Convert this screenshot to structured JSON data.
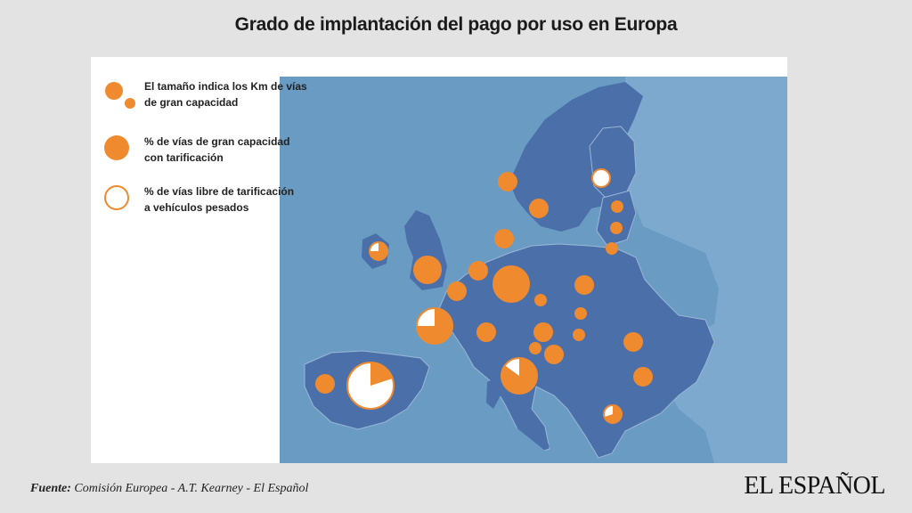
{
  "title": "Grado de implantación del pago por uso en Europa",
  "colors": {
    "sea": "#6a9cc3",
    "land_eu": "#4a6fa9",
    "land_other": "#7ea9ce",
    "border": "#9bb6d6",
    "bubble": "#ef8a2e",
    "bubble_free": "#ffffff"
  },
  "legend": [
    {
      "icon": "size-bubbles-icon",
      "line1": "El tamaño indica los Km de vías",
      "line2": "de gran capacidad"
    },
    {
      "icon": "tolled-bubble-icon",
      "line1": "% de vías de gran capacidad",
      "line2": "con tarificación"
    },
    {
      "icon": "free-bubble-icon",
      "line1": "% de vías libre de tarificación",
      "line2": "a vehículos pesados"
    }
  ],
  "bubbles": [
    {
      "id": "norway",
      "size": "medium",
      "tolled_pct": 100
    },
    {
      "id": "sweden",
      "size": "medium",
      "tolled_pct": 100
    },
    {
      "id": "finland",
      "size": "medium",
      "tolled_pct": 0
    },
    {
      "id": "estonia",
      "size": "small",
      "tolled_pct": 100
    },
    {
      "id": "latvia",
      "size": "small",
      "tolled_pct": 100
    },
    {
      "id": "lithuania",
      "size": "small",
      "tolled_pct": 100
    },
    {
      "id": "denmark",
      "size": "medium",
      "tolled_pct": 100
    },
    {
      "id": "ireland",
      "size": "medium",
      "tolled_pct": 75
    },
    {
      "id": "united-kingdom",
      "size": "large",
      "tolled_pct": 100
    },
    {
      "id": "netherlands",
      "size": "medium",
      "tolled_pct": 100
    },
    {
      "id": "belgium",
      "size": "medium",
      "tolled_pct": 100
    },
    {
      "id": "germany",
      "size": "xlarge",
      "tolled_pct": 100
    },
    {
      "id": "poland",
      "size": "medium",
      "tolled_pct": 100
    },
    {
      "id": "czech-republic",
      "size": "small",
      "tolled_pct": 100
    },
    {
      "id": "slovakia",
      "size": "small",
      "tolled_pct": 100
    },
    {
      "id": "austria",
      "size": "medium",
      "tolled_pct": 100
    },
    {
      "id": "hungary",
      "size": "small",
      "tolled_pct": 100
    },
    {
      "id": "france",
      "size": "xlarge",
      "tolled_pct": 75
    },
    {
      "id": "switzerland",
      "size": "medium",
      "tolled_pct": 100
    },
    {
      "id": "slovenia",
      "size": "small",
      "tolled_pct": 100
    },
    {
      "id": "croatia",
      "size": "medium",
      "tolled_pct": 100
    },
    {
      "id": "romania",
      "size": "medium",
      "tolled_pct": 100
    },
    {
      "id": "bulgaria",
      "size": "medium",
      "tolled_pct": 100
    },
    {
      "id": "italy",
      "size": "xlarge",
      "tolled_pct": 85
    },
    {
      "id": "portugal",
      "size": "medium",
      "tolled_pct": 100
    },
    {
      "id": "spain",
      "size": "xxlarge",
      "tolled_pct": 20
    },
    {
      "id": "greece",
      "size": "medium",
      "tolled_pct": 70
    }
  ],
  "footer": {
    "source_label": "Fuente:",
    "source_text": "Comisión Europea - A.T. Kearney -  El Español",
    "logo": "EL ESPAÑOL"
  }
}
